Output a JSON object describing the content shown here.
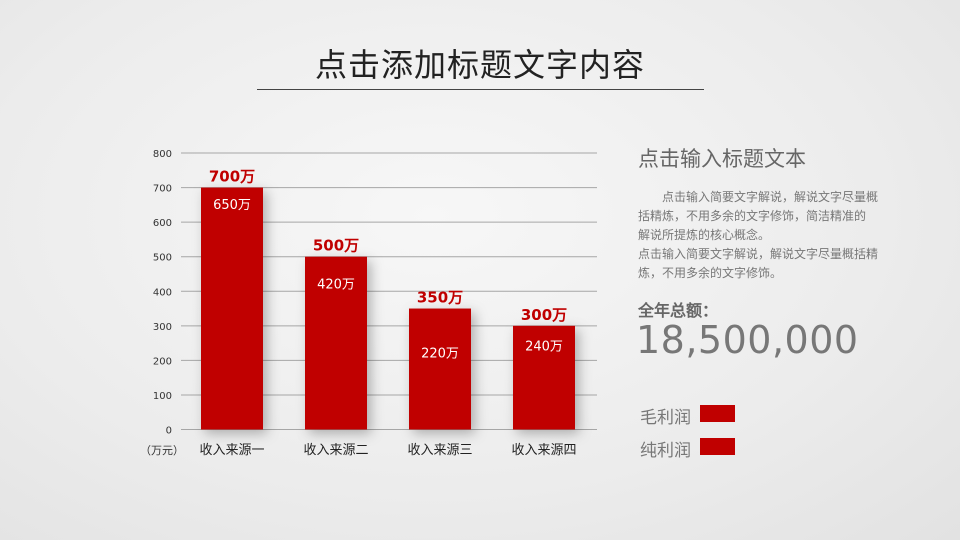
{
  "header": {
    "title": "点击添加标题文字内容"
  },
  "side": {
    "heading": "点击输入标题文本",
    "paragraphs": [
      "点击输入简要文字解说，解说文字尽量概括精炼，不用多余的文字修饰，简洁精准的 解说所提炼的核心概念。",
      "点击输入简要文字解说，解说文字尽量概括精炼，不用多余的文字修饰。"
    ],
    "total_label": "全年总额：",
    "total_value": "18,500,000"
  },
  "colors": {
    "accent": "#c00000",
    "grid": "#a6a6a6"
  },
  "chart_data": {
    "type": "bar",
    "unit_label": "（万元）",
    "categories": [
      "收入来源一",
      "收入来源二",
      "收入来源三",
      "收入来源四"
    ],
    "series": [
      {
        "name": "毛利润",
        "values": [
          700,
          500,
          350,
          300
        ],
        "labels": [
          "700万",
          "500万",
          "350万",
          "300万"
        ]
      },
      {
        "name": "纯利润",
        "values": [
          650,
          420,
          220,
          240
        ],
        "labels": [
          "650万",
          "420万",
          "220万",
          "240万"
        ]
      }
    ],
    "ylim": [
      0,
      800
    ],
    "yticks": [
      "0",
      "100",
      "200",
      "300",
      "400",
      "500",
      "600",
      "700",
      "800"
    ],
    "grid": true,
    "legend_position": "right"
  }
}
